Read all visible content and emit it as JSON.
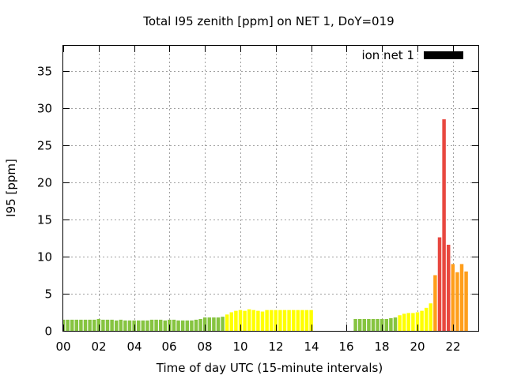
{
  "chart_data": {
    "type": "bar",
    "title": "Total I95 zenith [ppm] on NET 1, DoY=019",
    "xlabel": "Time of day UTC (15-minute intervals)",
    "ylabel": "I95 [ppm]",
    "xlim": [
      0,
      22.75
    ],
    "ylim": [
      0,
      38.5
    ],
    "x_ticks": [
      0,
      2,
      4,
      6,
      8,
      10,
      12,
      14,
      16,
      18,
      20,
      22
    ],
    "x_tick_labels": [
      "00",
      "02",
      "04",
      "06",
      "08",
      "10",
      "12",
      "14",
      "16",
      "18",
      "20",
      "22"
    ],
    "y_ticks": [
      0,
      5,
      10,
      15,
      20,
      25,
      30,
      35
    ],
    "y_tick_labels": [
      "0",
      "5",
      "10",
      "15",
      "20",
      "25",
      "30",
      "35"
    ],
    "grid": true,
    "legend": {
      "label": "ion net 1",
      "color": "#000000",
      "position": "top-right"
    },
    "bar_width_hours": 0.2,
    "color_scale": [
      {
        "max": 2,
        "color": "#86c440"
      },
      {
        "max": 5,
        "color": "#ffff00"
      },
      {
        "max": 9,
        "color": "#ff9e1b"
      },
      {
        "max": 1000,
        "color": "#e8473f"
      }
    ],
    "series": [
      {
        "name": "ion net 1",
        "values": [
          [
            0.0,
            1.5
          ],
          [
            0.25,
            1.5
          ],
          [
            0.5,
            1.5
          ],
          [
            0.75,
            1.5
          ],
          [
            1.0,
            1.5
          ],
          [
            1.25,
            1.5
          ],
          [
            1.5,
            1.5
          ],
          [
            1.75,
            1.5
          ],
          [
            2.0,
            1.6
          ],
          [
            2.25,
            1.5
          ],
          [
            2.5,
            1.5
          ],
          [
            2.75,
            1.5
          ],
          [
            3.0,
            1.4
          ],
          [
            3.25,
            1.5
          ],
          [
            3.5,
            1.4
          ],
          [
            3.75,
            1.4
          ],
          [
            4.0,
            1.4
          ],
          [
            4.25,
            1.4
          ],
          [
            4.5,
            1.4
          ],
          [
            4.75,
            1.4
          ],
          [
            5.0,
            1.5
          ],
          [
            5.25,
            1.5
          ],
          [
            5.5,
            1.5
          ],
          [
            5.75,
            1.4
          ],
          [
            6.0,
            1.5
          ],
          [
            6.25,
            1.5
          ],
          [
            6.5,
            1.4
          ],
          [
            6.75,
            1.4
          ],
          [
            7.0,
            1.4
          ],
          [
            7.25,
            1.4
          ],
          [
            7.5,
            1.5
          ],
          [
            7.75,
            1.6
          ],
          [
            8.0,
            1.8
          ],
          [
            8.25,
            1.8
          ],
          [
            8.5,
            1.8
          ],
          [
            8.75,
            1.8
          ],
          [
            9.0,
            1.9
          ],
          [
            9.25,
            2.2
          ],
          [
            9.5,
            2.5
          ],
          [
            9.75,
            2.7
          ],
          [
            10.0,
            2.8
          ],
          [
            10.25,
            2.7
          ],
          [
            10.5,
            2.9
          ],
          [
            10.75,
            2.8
          ],
          [
            11.0,
            2.7
          ],
          [
            11.25,
            2.6
          ],
          [
            11.5,
            2.8
          ],
          [
            11.75,
            2.8
          ],
          [
            12.0,
            2.8
          ],
          [
            12.25,
            2.8
          ],
          [
            12.5,
            2.8
          ],
          [
            12.75,
            2.8
          ],
          [
            13.0,
            2.8
          ],
          [
            13.25,
            2.8
          ],
          [
            13.5,
            2.8
          ],
          [
            13.75,
            2.8
          ],
          [
            14.0,
            2.8
          ],
          [
            16.5,
            1.6
          ],
          [
            16.75,
            1.6
          ],
          [
            17.0,
            1.6
          ],
          [
            17.25,
            1.6
          ],
          [
            17.5,
            1.6
          ],
          [
            17.75,
            1.6
          ],
          [
            18.0,
            1.6
          ],
          [
            18.25,
            1.6
          ],
          [
            18.5,
            1.7
          ],
          [
            18.75,
            1.8
          ],
          [
            19.0,
            2.1
          ],
          [
            19.25,
            2.3
          ],
          [
            19.5,
            2.4
          ],
          [
            19.75,
            2.4
          ],
          [
            20.0,
            2.5
          ],
          [
            20.25,
            2.7
          ],
          [
            20.5,
            3.1
          ],
          [
            20.75,
            3.7
          ],
          [
            21.0,
            7.5
          ],
          [
            21.25,
            12.6
          ],
          [
            21.5,
            28.5
          ],
          [
            21.75,
            11.6
          ],
          [
            22.0,
            9.0
          ],
          [
            22.25,
            7.9
          ],
          [
            22.5,
            9.0
          ],
          [
            22.75,
            8.0
          ]
        ]
      }
    ]
  }
}
